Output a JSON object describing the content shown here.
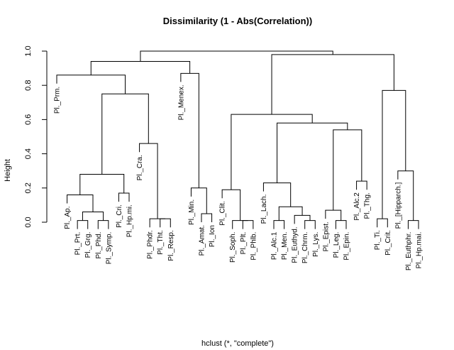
{
  "chart_data": {
    "type": "dendrogram",
    "title": "Dissimilarity (1 - Abs(Correlation))",
    "xlabel": "hclust (*, \"complete\")",
    "ylabel": "Height",
    "ylim": [
      0,
      1
    ],
    "yticks": [
      0.0,
      0.2,
      0.4,
      0.6,
      0.8,
      1.0
    ],
    "ytick_labels": [
      "0.0",
      "0.2",
      "0.4",
      "0.6",
      "0.8",
      "1.0"
    ],
    "leaves": [
      "Pl._Prm.",
      "Pl._Ap.",
      "Pl._Prt.",
      "Pl._Grg.",
      "Pl._Phd.",
      "Pl._Symp.",
      "Pl._Cri.",
      "Pl._Hp.mi.",
      "Pl._Cra.",
      "Pl._Phdr.",
      "Pl._Tht.",
      "Pl._Resp.",
      "Pl._Menex.",
      "Pl._Min.",
      "Pl._Amat.",
      "Pl._Ion",
      "Pl._Clit.",
      "Pl._Soph.",
      "Pl._Plt.",
      "Pl._Phlb.",
      "Pl._Lach.",
      "Pl._Alc.1",
      "Pl._Men.",
      "Pl._Euthyd.",
      "Pl._Chrm.",
      "Pl._Lys.",
      "Pl._Epist.",
      "Pl._Leg.",
      "Pl._Epin.",
      "Pl._Alc.2",
      "Pl._Thg.",
      "Pl._Ti.",
      "Pl._Crit.",
      "Pl._[Hipparch.]",
      "Pl._Euthphr.",
      "Pl._Hp.mai."
    ],
    "merges": [
      {
        "left": "L2",
        "right": "L3",
        "height": 0.01
      },
      {
        "left": "L10",
        "right": "L11",
        "height": 0.02
      },
      {
        "left": "L18",
        "right": "L19",
        "height": 0.01
      },
      {
        "left": "L17",
        "right": "m3",
        "height": 0.01
      },
      {
        "left": "L21",
        "right": "L22",
        "height": 0.01
      },
      {
        "left": "L24",
        "right": "L25",
        "height": 0.01
      },
      {
        "left": "L27",
        "right": "L28",
        "height": 0.01
      },
      {
        "left": "L31",
        "right": "L32",
        "height": 0.02
      },
      {
        "left": "L34",
        "right": "L35",
        "height": 0.01
      },
      {
        "left": "L14",
        "right": "L15",
        "height": 0.05
      },
      {
        "left": "L4",
        "right": "L5",
        "height": 0.01
      },
      {
        "left": "m1",
        "right": "m11",
        "height": 0.06
      },
      {
        "left": "L6",
        "right": "L7",
        "height": 0.17
      },
      {
        "left": "L1",
        "right": "m12",
        "height": 0.16
      },
      {
        "left": "m14",
        "right": "m13",
        "height": 0.28
      },
      {
        "left": "L9",
        "right": "m2",
        "height": 0.02
      },
      {
        "left": "L8",
        "right": "m16",
        "height": 0.46
      },
      {
        "left": "m15",
        "right": "m17",
        "height": 0.75
      },
      {
        "left": "L0",
        "right": "m18",
        "height": 0.86
      },
      {
        "left": "L13",
        "right": "m10",
        "height": 0.2
      },
      {
        "left": "L12",
        "right": "m20",
        "height": 0.87
      },
      {
        "left": "m19",
        "right": "m21",
        "height": 0.94
      },
      {
        "left": "L16",
        "right": "m4",
        "height": 0.19
      },
      {
        "left": "L23",
        "right": "m6",
        "height": 0.04
      },
      {
        "left": "m5",
        "right": "m24",
        "height": 0.09
      },
      {
        "left": "L20",
        "right": "m25",
        "height": 0.23
      },
      {
        "left": "L26",
        "right": "m7",
        "height": 0.07
      },
      {
        "left": "L29",
        "right": "L30",
        "height": 0.24
      },
      {
        "left": "m27",
        "right": "m28",
        "height": 0.54
      },
      {
        "left": "m26",
        "right": "m29",
        "height": 0.58
      },
      {
        "left": "m23",
        "right": "m30",
        "height": 0.63
      },
      {
        "left": "L33",
        "right": "m9",
        "height": 0.3
      },
      {
        "left": "m8",
        "right": "m32",
        "height": 0.77
      },
      {
        "left": "m31",
        "right": "m33",
        "height": 0.98
      },
      {
        "left": "m22",
        "right": "m34",
        "height": 1.0
      }
    ]
  }
}
